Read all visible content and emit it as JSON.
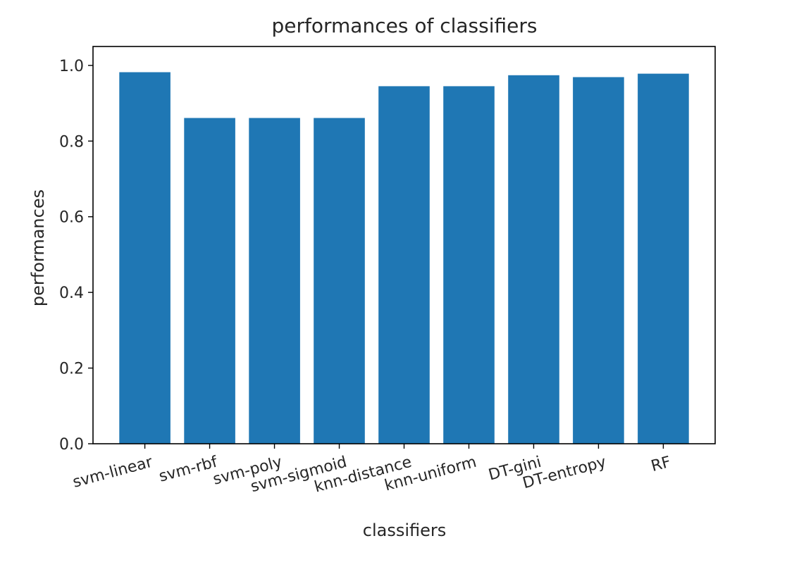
{
  "chart_data": {
    "type": "bar",
    "title": "performances of classifiers",
    "xlabel": "classifiers",
    "ylabel": "performances",
    "categories": [
      "svm-linear",
      "svm-rbf",
      "svm-poly",
      "svm-sigmoid",
      "knn-distance",
      "knn-uniform",
      "DT-gini",
      "DT-entropy",
      "RF"
    ],
    "values": [
      0.983,
      0.862,
      0.862,
      0.862,
      0.946,
      0.946,
      0.975,
      0.97,
      0.979
    ],
    "ylim": [
      0,
      1.05
    ],
    "yticks": [
      0.0,
      0.2,
      0.4,
      0.6,
      0.8,
      1.0
    ],
    "ytick_labels": [
      "0.0",
      "0.2",
      "0.4",
      "0.6",
      "0.8",
      "1.0"
    ],
    "bar_color": "#1f77b4",
    "grid": false,
    "legend": "none"
  }
}
